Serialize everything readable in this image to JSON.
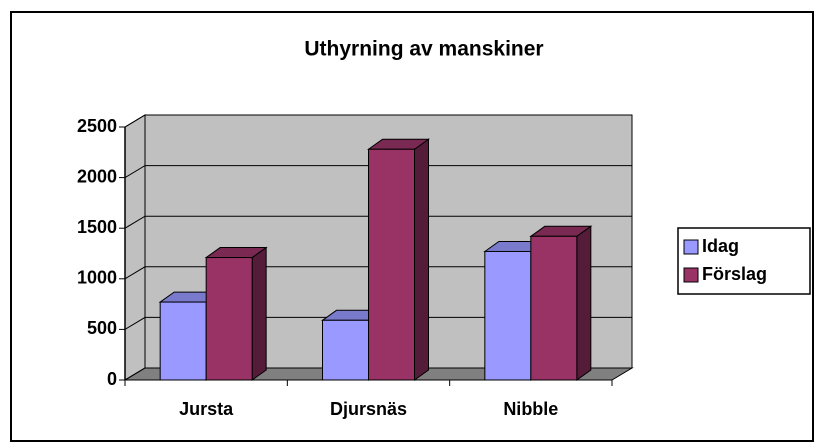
{
  "chart_data": {
    "type": "bar3d",
    "title": "Uthyrning av manskiner",
    "categories": [
      "Jursta",
      "Djursnäs",
      "Nibble"
    ],
    "series": [
      {
        "name": "Idag",
        "color": "#9999ff",
        "values": [
          770,
          590,
          1270
        ]
      },
      {
        "name": "Förslag",
        "color": "#993366",
        "values": [
          1210,
          2280,
          1420
        ]
      }
    ],
    "ylim": [
      0,
      2500
    ],
    "yticks": [
      0,
      500,
      1000,
      1500,
      2000,
      2500
    ],
    "grid": true,
    "legend": "right"
  }
}
